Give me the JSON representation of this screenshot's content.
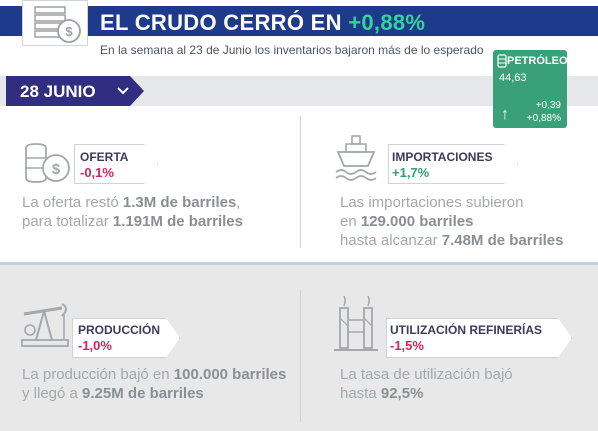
{
  "header": {
    "title_prefix": "EL CRUDO CERRÓ EN ",
    "title_pct": "+0,88%",
    "subtitle": "En la semana al 23 de Junio los inventarios bajaron más de lo esperado"
  },
  "date_tab": {
    "label": "28 JUNIO"
  },
  "oil_widget": {
    "label": "PETRÓLEO",
    "price": "44,63",
    "change_abs": "+0,39",
    "change_pct": "+0,88%",
    "colors": {
      "bg": "#3aa07a"
    }
  },
  "cards": {
    "oferta": {
      "title": "OFERTA",
      "value": "-0,1%",
      "desc_1a": "La oferta restó ",
      "desc_1b": "1.3M de barriles",
      "desc_1c": ",",
      "desc_2a": "para totalizar ",
      "desc_2b": "1.191M de barriles"
    },
    "importaciones": {
      "title": "IMPORTACIONES",
      "value": "+1,7%",
      "desc_1": "Las importaciones subieron",
      "desc_2a": "en ",
      "desc_2b": "129.000 barriles",
      "desc_3a": "hasta alcanzar ",
      "desc_3b": "7.48M de barriles"
    },
    "produccion": {
      "title": "PRODUCCIÓN",
      "value": "-1,0%",
      "desc_1a": "La producción bajó en ",
      "desc_1b": "100.000 barriles",
      "desc_2a": "y llegó a ",
      "desc_2b": "9.25M de barriles"
    },
    "refinerias": {
      "title": "UTILIZACIÓN REFINERÍAS",
      "value": "-1,5%",
      "desc_1": "La tasa de utilización bajó",
      "desc_2a": "hasta ",
      "desc_2b": "92,5%"
    }
  },
  "icons": {
    "header": "money-stack-icon",
    "oferta": "barrel-coin-icon",
    "importaciones": "ship-icon",
    "produccion": "oil-pump-icon",
    "refinerias": "refinery-icon",
    "oil": "barrel-icon"
  }
}
